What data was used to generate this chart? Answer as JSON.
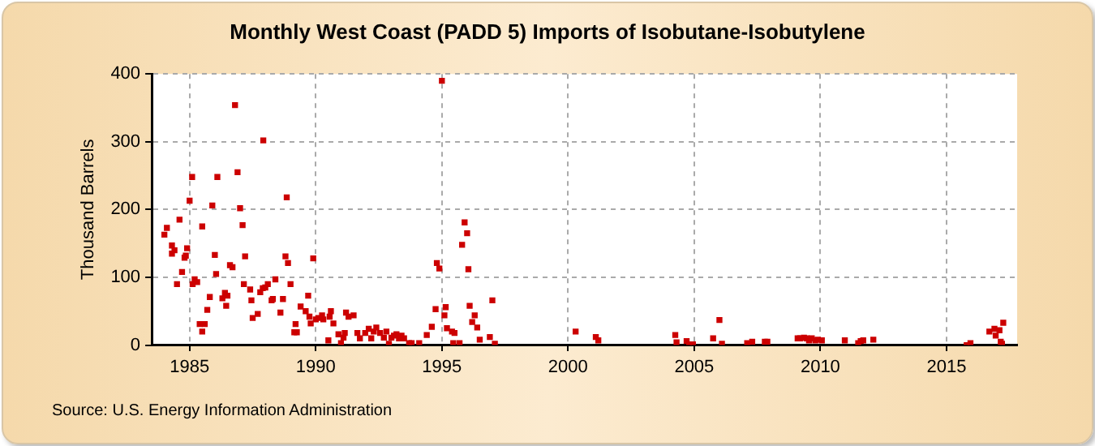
{
  "chart_data": {
    "type": "scatter",
    "title": "Monthly West Coast (PADD 5) Imports of Isobutane-Isobutylene",
    "ylabel": "Thousand Barrels",
    "annotations": [
      "Source: U.S. Energy Information Administration"
    ],
    "marker": "square",
    "grid": true,
    "legend": false,
    "xlim": [
      1983.5,
      2017.8
    ],
    "xticks": [
      1985,
      1990,
      1995,
      2000,
      2005,
      2010,
      2015
    ],
    "ylim": [
      0,
      400
    ],
    "yticks": [
      0,
      100,
      200,
      300,
      400
    ],
    "series": [
      {
        "color": "#cc0000",
        "x": [
          1984.0,
          1984.1,
          1984.3,
          1984.4,
          1984.3,
          1984.6,
          1984.5,
          1984.7,
          1984.8,
          1984.9,
          1984.85,
          1985.0,
          1985.1,
          1985.12,
          1985.2,
          1985.3,
          1985.5,
          1985.4,
          1985.5,
          1985.6,
          1985.7,
          1985.8,
          1985.9,
          1986.0,
          1986.05,
          1986.1,
          1986.3,
          1986.4,
          1986.45,
          1986.5,
          1986.6,
          1986.7,
          1986.8,
          1986.9,
          1987.0,
          1987.1,
          1987.15,
          1987.2,
          1987.4,
          1987.45,
          1987.5,
          1987.7,
          1987.8,
          1987.9,
          1987.92,
          1988.0,
          1988.1,
          1988.25,
          1988.3,
          1988.4,
          1988.6,
          1988.7,
          1988.8,
          1988.85,
          1988.9,
          1989.0,
          1989.15,
          1989.25,
          1989.2,
          1989.4,
          1989.6,
          1989.7,
          1989.75,
          1989.8,
          1989.9,
          1990.0,
          1990.1,
          1990.25,
          1990.3,
          1990.5,
          1990.55,
          1990.6,
          1990.7,
          1990.9,
          1991.0,
          1991.1,
          1991.15,
          1991.2,
          1991.3,
          1991.5,
          1991.65,
          1991.75,
          1991.96,
          1992.1,
          1992.2,
          1992.3,
          1992.4,
          1992.55,
          1992.7,
          1992.8,
          1992.9,
          1993.0,
          1993.1,
          1993.2,
          1993.3,
          1993.4,
          1993.5,
          1993.7,
          1993.8,
          1994.1,
          1994.4,
          1994.6,
          1994.75,
          1994.8,
          1994.9,
          1995.0,
          1995.1,
          1995.15,
          1995.2,
          1995.4,
          1995.5,
          1995.45,
          1995.7,
          1995.8,
          1995.9,
          1996.0,
          1996.05,
          1996.1,
          1996.2,
          1996.3,
          1996.4,
          1996.5,
          1996.9,
          1997.0,
          1997.1,
          2000.3,
          2001.1,
          2001.2,
          2004.25,
          2004.3,
          2004.7,
          2004.8,
          2004.95,
          2005.75,
          2006.0,
          2006.1,
          2007.1,
          2007.3,
          2007.8,
          2007.9,
          2009.1,
          2009.2,
          2009.35,
          2009.46,
          2009.55,
          2009.66,
          2009.8,
          2009.9,
          2010.06,
          2010.97,
          2011.5,
          2011.6,
          2011.7,
          2012.1,
          2015.8,
          2015.95,
          2016.7,
          2016.9,
          2016.95,
          2017.1,
          2017.15,
          2017.25,
          2017.2
        ],
        "values": [
          163,
          173,
          147,
          140,
          135,
          185,
          90,
          108,
          129,
          143,
          132,
          213,
          248,
          90,
          97,
          93,
          175,
          31,
          20,
          31,
          52,
          71,
          206,
          133,
          105,
          248,
          69,
          77,
          58,
          73,
          118,
          115,
          354,
          255,
          202,
          177,
          90,
          131,
          82,
          66,
          40,
          46,
          78,
          84,
          302,
          85,
          90,
          66,
          68,
          97,
          48,
          68,
          131,
          218,
          121,
          90,
          19,
          19,
          31,
          57,
          50,
          73,
          42,
          32,
          128,
          38,
          40,
          44,
          38,
          7,
          42,
          50,
          32,
          16,
          3,
          11,
          18,
          48,
          42,
          44,
          18,
          10,
          18,
          24,
          10,
          20,
          26,
          18,
          11,
          20,
          2,
          11,
          14,
          16,
          10,
          14,
          10,
          3,
          3,
          3,
          15,
          27,
          53,
          121,
          113,
          390,
          44,
          56,
          25,
          20,
          18,
          3,
          3,
          148,
          181,
          165,
          112,
          58,
          34,
          44,
          26,
          8,
          12,
          66,
          2,
          20,
          12,
          7,
          15,
          4,
          6,
          1,
          1,
          10,
          37,
          2,
          3,
          5,
          5,
          5,
          10,
          10,
          11,
          10,
          7,
          10,
          7,
          8,
          7,
          7,
          3,
          6,
          7,
          8,
          0,
          3,
          20,
          24,
          14,
          22,
          5,
          33,
          2
        ]
      }
    ]
  }
}
